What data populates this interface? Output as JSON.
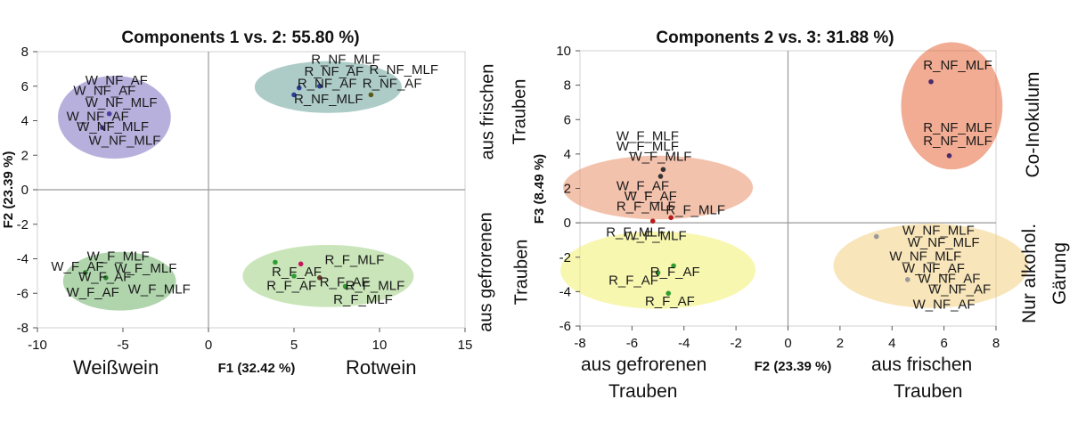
{
  "chart_data": [
    {
      "type": "scatter",
      "title": "Components 1 vs. 2: 55.80 %)",
      "xlabel": "F1 (32.42 %)",
      "ylabel": "F2 (23.39 %)",
      "xlim": [
        -10,
        15
      ],
      "ylim": [
        -8,
        8
      ],
      "xticks": [
        "-10",
        "-5",
        "0",
        "5",
        "10",
        "15"
      ],
      "yticks": [
        "-8",
        "-6",
        "-4",
        "-2",
        "0",
        "2",
        "4",
        "6",
        "8"
      ],
      "grid": false,
      "legend": "none",
      "groups": [
        {
          "color": "#7e6fc0",
          "cx": -5.5,
          "cy": 4.2,
          "rx": 3.3,
          "ry": 2.4
        },
        {
          "color": "#6aa39a",
          "cx": 7.0,
          "cy": 5.95,
          "rx": 4.3,
          "ry": 1.5
        },
        {
          "color": "#6fb36a",
          "cx": -5.2,
          "cy": -5.3,
          "rx": 3.3,
          "ry": 1.7
        },
        {
          "color": "#9fd07f",
          "cx": 7.0,
          "cy": -5.0,
          "rx": 5.0,
          "ry": 1.8
        }
      ],
      "points": [
        {
          "x": -6.2,
          "y": 3.6,
          "color": "#4a3f9a"
        },
        {
          "x": -5.8,
          "y": 4.4,
          "color": "#4a3f9a"
        },
        {
          "x": 5.3,
          "y": 5.9,
          "color": "#2a3e9a"
        },
        {
          "x": 6.5,
          "y": 6.0,
          "color": "#2a3e9a"
        },
        {
          "x": 9.5,
          "y": 5.5,
          "color": "#5c5a1a"
        },
        {
          "x": 5.0,
          "y": 5.5,
          "color": "#2a3e9a"
        },
        {
          "x": -7.2,
          "y": -4.8,
          "color": "#2e7d32"
        },
        {
          "x": -6.0,
          "y": -5.1,
          "color": "#2e7d32"
        },
        {
          "x": 3.9,
          "y": -4.2,
          "color": "#2e9d32"
        },
        {
          "x": 5.4,
          "y": -4.3,
          "color": "#c2185b"
        },
        {
          "x": 5.0,
          "y": -5.0,
          "color": "#2e9d32"
        },
        {
          "x": 6.5,
          "y": -5.1,
          "color": "#6b3a2a"
        },
        {
          "x": 8.0,
          "y": -5.6,
          "color": "#2e9d32"
        }
      ],
      "labels": [
        {
          "text": "W_NF_AF",
          "x": -7.2,
          "y": 6.1
        },
        {
          "text": "W_NF_AF",
          "x": -7.9,
          "y": 5.5
        },
        {
          "text": "W_NF_MLF",
          "x": -7.2,
          "y": 4.8
        },
        {
          "text": "W_NF_AF",
          "x": -8.3,
          "y": 4.0
        },
        {
          "text": "W_NF_MLF",
          "x": -7.7,
          "y": 3.4
        },
        {
          "text": "W_NF_MLF",
          "x": -7.0,
          "y": 2.6
        },
        {
          "text": "R_NF_MLF",
          "x": 6.0,
          "y": 7.3
        },
        {
          "text": "R_NF_AF",
          "x": 5.6,
          "y": 6.6
        },
        {
          "text": "R_NF_MLF",
          "x": 9.4,
          "y": 6.7
        },
        {
          "text": "R_NF_AF",
          "x": 5.2,
          "y": 5.9
        },
        {
          "text": "R_NF_AF",
          "x": 9.0,
          "y": 5.9
        },
        {
          "text": "R_NF_MLF",
          "x": 5.0,
          "y": 5.0
        },
        {
          "text": "W_F_MLF",
          "x": -7.1,
          "y": -4.1
        },
        {
          "text": "W_F_AF",
          "x": -9.2,
          "y": -4.7
        },
        {
          "text": "W_F_MLF",
          "x": -5.5,
          "y": -4.8
        },
        {
          "text": "W_F_AF",
          "x": -7.6,
          "y": -5.3
        },
        {
          "text": "W_F_AF",
          "x": -8.3,
          "y": -6.2
        },
        {
          "text": "W_F_MLF",
          "x": -4.7,
          "y": -6.0
        },
        {
          "text": "R_F_MLF",
          "x": 6.8,
          "y": -4.3
        },
        {
          "text": "R_F_AF",
          "x": 3.7,
          "y": -5.0
        },
        {
          "text": "R_F_AF",
          "x": 3.4,
          "y": -5.8
        },
        {
          "text": "R_F_AF",
          "x": 6.5,
          "y": -5.6
        },
        {
          "text": "R_F_MLF",
          "x": 8.0,
          "y": -5.8
        },
        {
          "text": "R_F_MLF",
          "x": 7.3,
          "y": -6.6
        }
      ]
    },
    {
      "type": "scatter",
      "title": "Components 2 vs. 3: 31.88 %)",
      "xlabel": "F2 (23.39 %)",
      "ylabel": "F3 (8.49 %)",
      "xlim": [
        -8,
        8
      ],
      "ylim": [
        -6,
        10
      ],
      "xticks": [
        "-8",
        "-6",
        "-4",
        "-2",
        "0",
        "2",
        "4",
        "6",
        "8"
      ],
      "yticks": [
        "-6",
        "-4",
        "-2",
        "0",
        "2",
        "4",
        "6",
        "8",
        "10"
      ],
      "grid": false,
      "legend": "none",
      "groups": [
        {
          "color": "#e5673a",
          "cx": 6.3,
          "cy": 6.8,
          "rx": 1.95,
          "ry": 3.7
        },
        {
          "color": "#e98f6a",
          "cx": -5.0,
          "cy": 2.05,
          "rx": 3.65,
          "ry": 1.85
        },
        {
          "color": "#f2f070",
          "cx": -5.0,
          "cy": -2.75,
          "rx": 3.75,
          "ry": 2.25
        },
        {
          "color": "#f3cf80",
          "cx": 5.5,
          "cy": -2.5,
          "rx": 3.75,
          "ry": 2.45
        }
      ],
      "points": [
        {
          "x": 5.5,
          "y": 8.2,
          "color": "#4a2a6a"
        },
        {
          "x": 6.2,
          "y": 3.9,
          "color": "#4a2a6a"
        },
        {
          "x": -4.8,
          "y": 3.1,
          "color": "#333333"
        },
        {
          "x": -4.9,
          "y": 2.7,
          "color": "#333333"
        },
        {
          "x": -4.5,
          "y": 0.3,
          "color": "#b71c1c"
        },
        {
          "x": -5.2,
          "y": 0.1,
          "color": "#b71c1c"
        },
        {
          "x": -4.4,
          "y": -2.5,
          "color": "#2e9d32"
        },
        {
          "x": -5.0,
          "y": -2.9,
          "color": "#2e9d32"
        },
        {
          "x": -4.6,
          "y": -4.1,
          "color": "#2e9d32"
        },
        {
          "x": 3.4,
          "y": -0.8,
          "color": "#999999"
        },
        {
          "x": 4.6,
          "y": -3.3,
          "color": "#999999"
        }
      ],
      "labels": [
        {
          "text": "R_NF_MLF",
          "x": 5.2,
          "y": 8.9
        },
        {
          "text": "R_NF_MLF",
          "x": 5.2,
          "y": 5.3
        },
        {
          "text": "R_NF_MLF",
          "x": 5.2,
          "y": 4.5
        },
        {
          "text": "W_F_MLF",
          "x": -6.6,
          "y": 4.8
        },
        {
          "text": "W_F_MLF",
          "x": -6.6,
          "y": 4.2
        },
        {
          "text": "W_F_MLF",
          "x": -6.1,
          "y": 3.6
        },
        {
          "text": "W_F_AF",
          "x": -6.6,
          "y": 1.9
        },
        {
          "text": "W_F_AF",
          "x": -6.3,
          "y": 1.3
        },
        {
          "text": "R_F_MLF",
          "x": -6.6,
          "y": 0.7
        },
        {
          "text": "R_F_MLF",
          "x": -4.7,
          "y": 0.5
        },
        {
          "text": "R_F_MLF",
          "x": -7.0,
          "y": -0.8
        },
        {
          "text": "W_F_MLF",
          "x": -6.3,
          "y": -1.0
        },
        {
          "text": "R_F_AF",
          "x": -5.3,
          "y": -3.1
        },
        {
          "text": "R_F_AF",
          "x": -6.9,
          "y": -3.6
        },
        {
          "text": "R_F_AF",
          "x": -5.5,
          "y": -4.8
        },
        {
          "text": "W_NF_MLF",
          "x": 4.4,
          "y": -0.7
        },
        {
          "text": "W_NF_MLF",
          "x": 4.6,
          "y": -1.4
        },
        {
          "text": "W_NF_MLF",
          "x": 3.9,
          "y": -2.2
        },
        {
          "text": "W_NF_AF",
          "x": 4.4,
          "y": -2.9
        },
        {
          "text": "W_NF_AF",
          "x": 5.0,
          "y": -3.5
        },
        {
          "text": "W_NF_AF",
          "x": 5.4,
          "y": -4.1
        },
        {
          "text": "W_NF_AF",
          "x": 4.8,
          "y": -5.0
        }
      ]
    }
  ],
  "annotations": {
    "left_chart": {
      "x_left": "Weißwein",
      "x_right": "Rotwein",
      "y_top_line1": "aus frischen",
      "y_top_line2": "Trauben",
      "y_bottom_line1": "aus gefrorenen",
      "y_bottom_line2": "Trauben"
    },
    "right_chart": {
      "x_left_line1": "aus gefrorenen",
      "x_left_line2": "Trauben",
      "x_right_line1": "aus frischen",
      "x_right_line2": "Trauben",
      "y_top": "Co-Inokulum",
      "y_bottom_line1": "Nur alkohol.",
      "y_bottom_line2": "Gärung"
    }
  }
}
